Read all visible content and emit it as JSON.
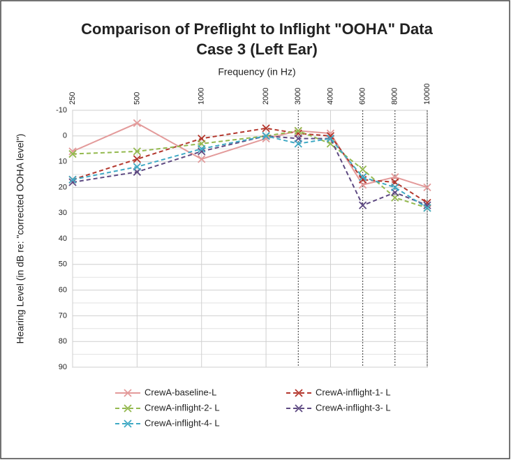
{
  "chart_data": {
    "type": "line",
    "title": [
      "Comparison of Preflight to Inflight \"OOHA\" Data",
      "Case 3 (Left Ear)"
    ],
    "x_label": "Frequency (in Hz)",
    "y_label": "Hearing Level (in dB re: \"corrected OOHA level\")",
    "categories": [
      "250",
      "500",
      "1000",
      "2000",
      "3000",
      "4000",
      "6000",
      "8000",
      "10000"
    ],
    "ylim": [
      -10,
      90
    ],
    "yticks": [
      -10,
      0,
      10,
      20,
      30,
      40,
      50,
      60,
      70,
      80,
      90
    ],
    "y_reversed": true,
    "grid": true,
    "series": [
      {
        "name": "CrewA-baseline-L",
        "color": "#e39a9a",
        "dashed": false,
        "values": [
          6,
          -5,
          9,
          1,
          -2,
          -1,
          19,
          16,
          20
        ]
      },
      {
        "name": "CrewA-inflight-1- L",
        "color": "#b3362c",
        "dashed": true,
        "values": [
          17,
          9,
          1,
          -3,
          -1,
          0,
          17,
          18,
          26
        ]
      },
      {
        "name": "CrewA-inflight-2- L",
        "color": "#94b94f",
        "dashed": true,
        "values": [
          7,
          6,
          3,
          0,
          -2,
          3,
          13,
          24,
          28
        ]
      },
      {
        "name": "CrewA-inflight-3- L",
        "color": "#5e4a82",
        "dashed": true,
        "values": [
          18,
          14,
          6,
          0,
          1,
          1,
          27,
          22,
          27
        ]
      },
      {
        "name": "CrewA-inflight-4- L",
        "color": "#3fa9c4",
        "dashed": true,
        "values": [
          17,
          12,
          5,
          0,
          3,
          1,
          16,
          20,
          28
        ]
      }
    ]
  }
}
